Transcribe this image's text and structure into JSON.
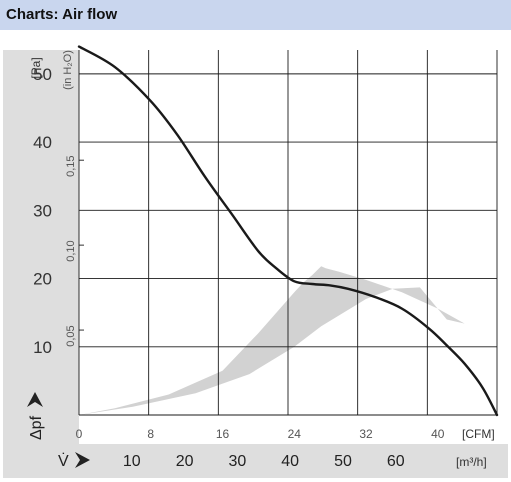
{
  "header": {
    "title": "Charts: Air flow"
  },
  "chart_data": {
    "type": "line",
    "title": "Charts: Air flow",
    "y_axis": {
      "label": "Δpf",
      "unit": "[Pa]",
      "ticks": [
        10,
        20,
        30,
        40,
        50
      ],
      "range": [
        0,
        53.5
      ]
    },
    "y_axis_secondary": {
      "unit": "(in H₂O)",
      "ticks": [
        "0,05",
        "0,10",
        "0,15"
      ],
      "tick_values_pa": [
        12.45,
        24.9,
        37.35
      ]
    },
    "x_axis_primary": {
      "unit": "[CFM]",
      "ticks": [
        0,
        8,
        16,
        24,
        32,
        40
      ],
      "range": [
        0,
        46.6
      ]
    },
    "x_axis_secondary": {
      "label": "V̇",
      "unit": "[m³/h]",
      "ticks": [
        10,
        20,
        30,
        40,
        50,
        60
      ],
      "cfm_per_unit": 0.5886
    },
    "series": [
      {
        "x": [
          0,
          4,
          8,
          11,
          14,
          17,
          20,
          22,
          24,
          26,
          28,
          30,
          33,
          36,
          39,
          41,
          43,
          45,
          46.6
        ],
        "y": [
          54,
          51,
          46,
          41,
          35,
          29.5,
          24,
          21.5,
          19.6,
          19.2,
          19,
          18.5,
          17.3,
          15.6,
          12.7,
          10.2,
          7.5,
          4,
          0
        ]
      }
    ],
    "operating_region": {
      "x": [
        0,
        6,
        13,
        19,
        24,
        27,
        29,
        32,
        35,
        38,
        41,
        43,
        43,
        40,
        36,
        32,
        29,
        27.5,
        27,
        26,
        25,
        24,
        22,
        20,
        16,
        10,
        4,
        0
      ],
      "y": [
        0,
        1.2,
        3.2,
        6,
        10,
        13,
        14.6,
        17,
        18.5,
        18.7,
        14,
        13.4,
        13.4,
        15.6,
        18,
        19.8,
        21,
        21.5,
        21.8,
        20.5,
        19.4,
        18,
        15,
        12,
        6.5,
        3,
        1,
        0
      ]
    },
    "grid": true
  }
}
